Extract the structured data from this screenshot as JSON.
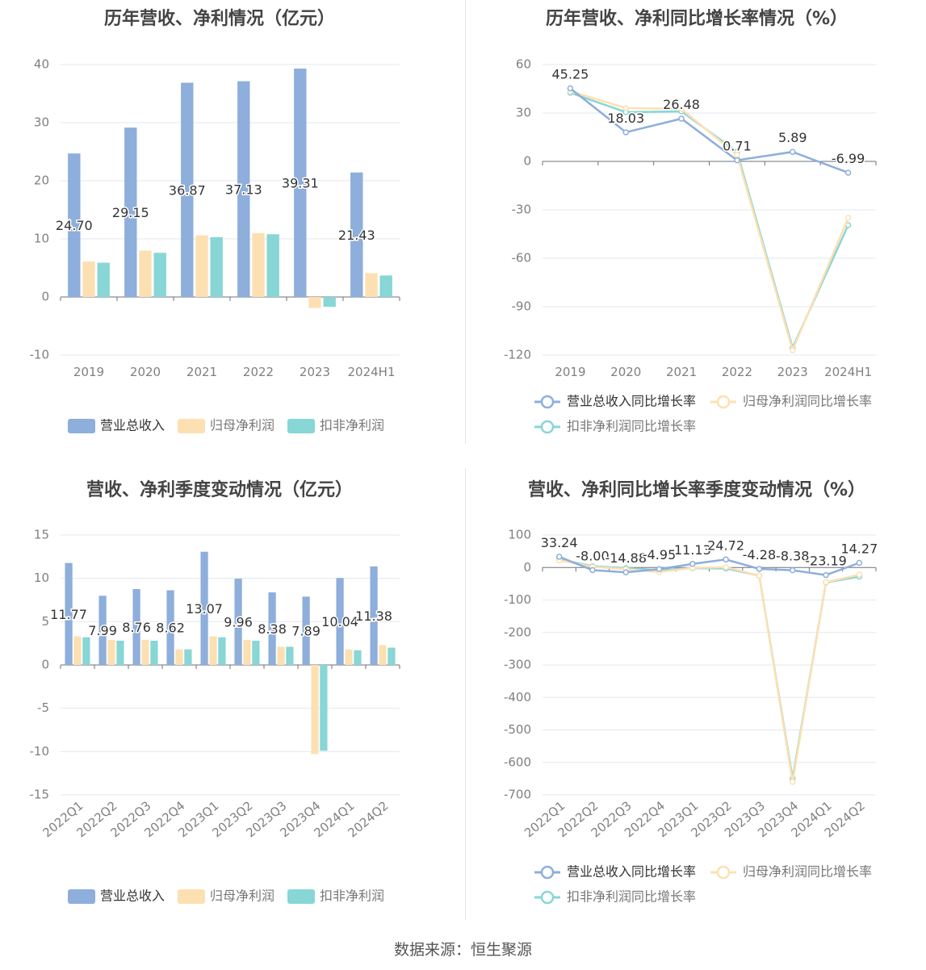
{
  "source_label": "数据来源：恒生聚源",
  "colors": {
    "revenue": "#8eaedb",
    "parent_profit": "#fde0b2",
    "deducted_profit": "#88d6d6",
    "grid": "#e3e7ef",
    "axis": "#6e7079",
    "label": "#333333",
    "tick": "#808080"
  },
  "chart_data": [
    {
      "type": "bar",
      "title": "历年营收、净利情况（亿元）",
      "categories": [
        "2019",
        "2020",
        "2021",
        "2022",
        "2023",
        "2024H1"
      ],
      "ylim": [
        -10,
        40
      ],
      "yticks": [
        -10,
        0,
        10,
        20,
        30,
        40
      ],
      "series": [
        {
          "name": "营业总收入",
          "values": [
            24.7,
            29.15,
            36.87,
            37.13,
            39.31,
            21.43
          ],
          "labels": [
            "24.70",
            "29.15",
            "36.87",
            "37.13",
            "39.31",
            "21.43"
          ]
        },
        {
          "name": "归母净利润",
          "values": [
            6.1,
            8.0,
            10.6,
            11.0,
            -1.9,
            4.1
          ]
        },
        {
          "name": "扣非净利润",
          "values": [
            5.9,
            7.6,
            10.3,
            10.8,
            -1.7,
            3.7
          ]
        }
      ],
      "legend": "bottom",
      "grid": true
    },
    {
      "type": "line",
      "title": "历年营收、净利同比增长率情况（%）",
      "categories": [
        "2019",
        "2020",
        "2021",
        "2022",
        "2023",
        "2024H1"
      ],
      "ylim": [
        -120,
        60
      ],
      "yticks": [
        -120,
        -90,
        -60,
        -30,
        0,
        30,
        60
      ],
      "series": [
        {
          "name": "营业总收入同比增长率",
          "values": [
            45.25,
            18.03,
            26.48,
            0.71,
            5.89,
            -6.99
          ],
          "labels": [
            "45.25",
            "18.03",
            "26.48",
            "0.71",
            "5.89",
            "-6.99"
          ]
        },
        {
          "name": "归母净利润同比增长率",
          "values": [
            43.5,
            33.0,
            32.5,
            4.0,
            -117.0,
            -35.0
          ]
        },
        {
          "name": "扣非净利润同比增长率",
          "values": [
            42.5,
            30.5,
            31.0,
            6.0,
            -115.5,
            -39.5
          ]
        }
      ],
      "legend": "bottom",
      "grid": true
    },
    {
      "type": "bar",
      "title": "营收、净利季度变动情况（亿元）",
      "categories": [
        "2022Q1",
        "2022Q2",
        "2022Q3",
        "2022Q4",
        "2023Q1",
        "2023Q2",
        "2023Q3",
        "2023Q4",
        "2024Q1",
        "2024Q2"
      ],
      "ylim": [
        -15,
        15
      ],
      "yticks": [
        -15,
        -10,
        -5,
        0,
        5,
        10,
        15
      ],
      "series": [
        {
          "name": "营业总收入",
          "values": [
            11.77,
            7.99,
            8.76,
            8.62,
            13.07,
            9.96,
            8.38,
            7.89,
            10.04,
            11.38
          ],
          "labels": [
            "11.77",
            "7.99",
            "8.76",
            "8.62",
            "13.07",
            "9.96",
            "8.38",
            "7.89",
            "10.04",
            "11.38"
          ]
        },
        {
          "name": "归母净利润",
          "values": [
            3.3,
            2.9,
            2.9,
            1.8,
            3.3,
            2.9,
            2.1,
            -10.3,
            1.8,
            2.3
          ]
        },
        {
          "name": "扣非净利润",
          "values": [
            3.2,
            2.8,
            2.8,
            1.8,
            3.2,
            2.8,
            2.1,
            -9.9,
            1.7,
            2.0
          ]
        }
      ],
      "legend": "bottom",
      "grid": true
    },
    {
      "type": "line",
      "title": "营收、净利同比增长率季度变动情况（%）",
      "categories": [
        "2022Q1",
        "2022Q2",
        "2022Q3",
        "2022Q4",
        "2023Q1",
        "2023Q2",
        "2023Q3",
        "2023Q4",
        "2024Q1",
        "2024Q2"
      ],
      "ylim": [
        -700,
        100
      ],
      "yticks": [
        -700,
        -600,
        -500,
        -400,
        -300,
        -200,
        -100,
        0,
        100
      ],
      "series": [
        {
          "name": "营业总收入同比增长率",
          "values": [
            33.24,
            -8.0,
            -14.88,
            -4.95,
            11.13,
            24.72,
            -4.28,
            -8.38,
            -23.19,
            14.27
          ],
          "labels": [
            "33.24",
            "-8.00",
            "-14.88",
            "-4.95",
            "11.13",
            "24.72",
            "-4.28",
            "-8.38",
            "-23.19",
            "14.27"
          ]
        },
        {
          "name": "归母净利润同比增长率",
          "values": [
            22,
            2,
            -5,
            -14,
            -1,
            1,
            -25,
            -660,
            -45,
            -22
          ]
        },
        {
          "name": "扣非净利润同比增长率",
          "values": [
            25,
            4,
            -2,
            -8,
            -2,
            -3,
            -25,
            -650,
            -46,
            -28
          ]
        }
      ],
      "legend": "bottom",
      "grid": true
    }
  ]
}
